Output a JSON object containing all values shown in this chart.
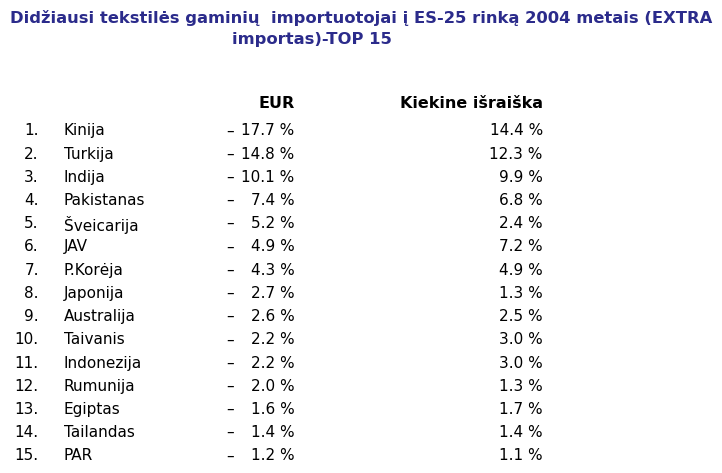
{
  "title_line1": "Didžiausi tekstilės gaminių  importuotojai į ES-25 rinką 2004 metais (EXTRA",
  "title_line2": "importas)-TOP 15",
  "title_color": "#2b2b8b",
  "col_header_eur": "EUR",
  "col_header_kiekine": "Kiekine išraiška",
  "rows": [
    {
      "num": "1.",
      "country": "Kinija",
      "eur": "17.7 %",
      "kiekine": "14.4 %"
    },
    {
      "num": "2.",
      "country": "Turkija",
      "eur": "14.8 %",
      "kiekine": "12.3 %"
    },
    {
      "num": "3.",
      "country": "Indija",
      "eur": "10.1 %",
      "kiekine": "9.9 %"
    },
    {
      "num": "4.",
      "country": "Pakistanas",
      "eur": "7.4 %",
      "kiekine": "6.8 %"
    },
    {
      "num": "5.",
      "country": "Šveicarija",
      "eur": "5.2 %",
      "kiekine": "2.4 %"
    },
    {
      "num": "6.",
      "country": "JAV",
      "eur": "4.9 %",
      "kiekine": "7.2 %"
    },
    {
      "num": "7.",
      "country": "P.Korėja",
      "eur": "4.3 %",
      "kiekine": "4.9 %"
    },
    {
      "num": "8.",
      "country": "Japonija",
      "eur": "2.7 %",
      "kiekine": "1.3 %"
    },
    {
      "num": "9.",
      "country": "Australija",
      "eur": "2.6 %",
      "kiekine": "2.5 %"
    },
    {
      "num": "10.",
      "country": "Taivanis",
      "eur": "2.2 %",
      "kiekine": "3.0 %"
    },
    {
      "num": "11.",
      "country": "Indonezija",
      "eur": "2.2 %",
      "kiekine": "3.0 %"
    },
    {
      "num": "12.",
      "country": "Rumunija",
      "eur": "2.0 %",
      "kiekine": "1.3 %"
    },
    {
      "num": "13.",
      "country": "Egiptas",
      "eur": "1.6 %",
      "kiekine": "1.7 %"
    },
    {
      "num": "14.",
      "country": "Tailandas",
      "eur": "1.4 %",
      "kiekine": "1.4 %"
    },
    {
      "num": "15.",
      "country": "PAR",
      "eur": "1.2 %",
      "kiekine": "1.1 %"
    }
  ],
  "background_color": "#ffffff",
  "text_color": "#000000",
  "dash": "–",
  "fontsize_title": 11.8,
  "fontsize_header": 11.5,
  "fontsize_body": 11.0
}
